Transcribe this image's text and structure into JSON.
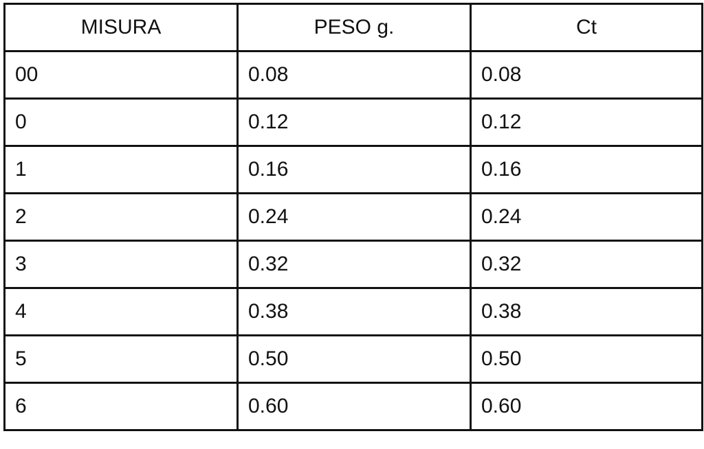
{
  "table": {
    "header": [
      "MISURA",
      "PESO g.",
      "Ct"
    ],
    "rows": [
      [
        "00",
        "0.08",
        "0.08"
      ],
      [
        "0",
        "0.12",
        "0.12"
      ],
      [
        "1",
        "0.16",
        "0.16"
      ],
      [
        "2",
        "0.24",
        "0.24"
      ],
      [
        "3",
        "0.32",
        "0.32"
      ],
      [
        "4",
        "0.38",
        "0.38"
      ],
      [
        "5",
        "0.50",
        "0.50"
      ],
      [
        "6",
        "0.60",
        "0.60"
      ]
    ]
  }
}
